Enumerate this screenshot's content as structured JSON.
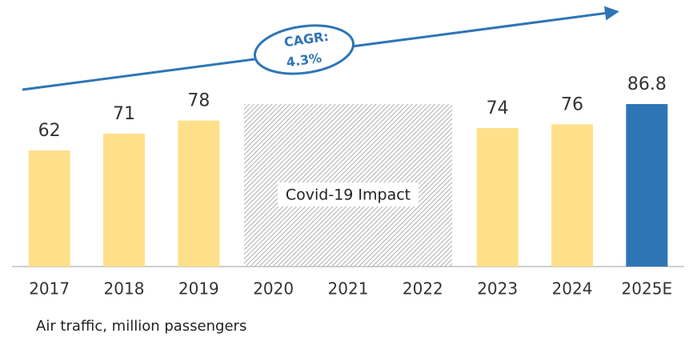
{
  "chart_data": {
    "type": "bar",
    "categories": [
      "2017",
      "2018",
      "2019",
      "2020",
      "2021",
      "2022",
      "2023",
      "2024",
      "2025E"
    ],
    "values": [
      62,
      71,
      78,
      null,
      null,
      null,
      74,
      76,
      86.8
    ],
    "colors": [
      "#ffe08a",
      "#ffe08a",
      "#ffe08a",
      null,
      null,
      null,
      "#ffe08a",
      "#ffe08a",
      "#2e75b6"
    ],
    "annotation": "Covid-19 Impact",
    "cagr_label": "CAGR:",
    "cagr_value": "4.3%",
    "caption": "Air traffic, million passengers"
  }
}
